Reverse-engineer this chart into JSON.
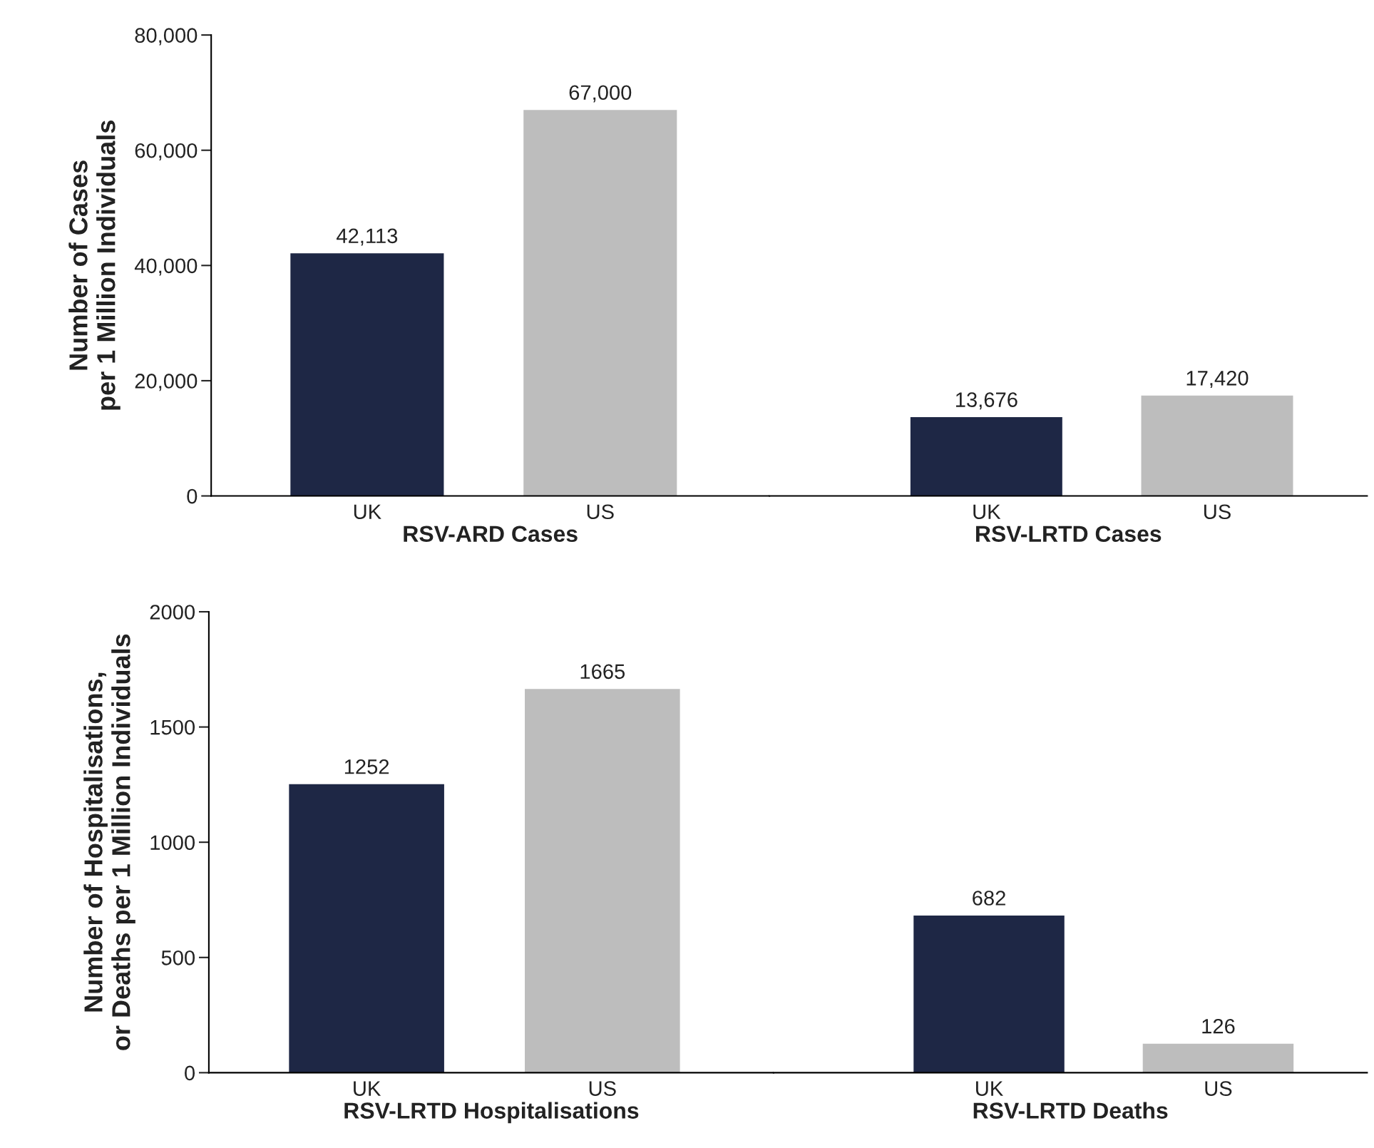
{
  "chart_data": [
    {
      "type": "bar",
      "ylabel": "Number of Cases\nper 1 Million Individuals",
      "xlabel": "RSV-ARD Cases",
      "categories": [
        "UK",
        "US"
      ],
      "values": [
        42113,
        67000
      ],
      "colors": [
        "#1e2745",
        "#bdbdbd"
      ],
      "value_labels": [
        "42,113",
        "67,000"
      ],
      "ylim": [
        0,
        80000
      ],
      "yticks": [
        {
          "value": 0,
          "label": "0"
        },
        {
          "value": 20000,
          "label": "20,000"
        },
        {
          "value": 40000,
          "label": "40,000"
        },
        {
          "value": 60000,
          "label": "60,000"
        },
        {
          "value": 80000,
          "label": "80,000"
        }
      ],
      "grid": false,
      "legend": false
    },
    {
      "type": "bar",
      "xlabel": "RSV-LRTD Cases",
      "categories": [
        "UK",
        "US"
      ],
      "values": [
        13676,
        17420
      ],
      "colors": [
        "#1e2745",
        "#bdbdbd"
      ],
      "value_labels": [
        "13,676",
        "17,420"
      ],
      "ylim": [
        0,
        80000
      ],
      "tick_labels": "x",
      "grid": false,
      "legend": false
    },
    {
      "type": "bar",
      "ylabel": "Number of Hospitalisations,\nor Deaths per 1 Million Individuals",
      "xlabel": "RSV-LRTD Hospitalisations",
      "categories": [
        "UK",
        "US"
      ],
      "values": [
        1252,
        1665
      ],
      "colors": [
        "#1e2745",
        "#bdbdbd"
      ],
      "value_labels": [
        "1252",
        "1665"
      ],
      "ylim": [
        0,
        2000
      ],
      "yticks": [
        0,
        500,
        1000,
        1500,
        2000
      ],
      "grid": false,
      "legend": false
    },
    {
      "type": "bar",
      "xlabel": "RSV-LRTD Deaths",
      "categories": [
        "UK",
        "US"
      ],
      "values": [
        682,
        126
      ],
      "colors": [
        "#1e2745",
        "#bdbdbd"
      ],
      "value_labels": [
        "682",
        "126"
      ],
      "ylim": [
        0,
        2000
      ],
      "tick_labels": "x",
      "grid": false,
      "legend": false
    }
  ]
}
